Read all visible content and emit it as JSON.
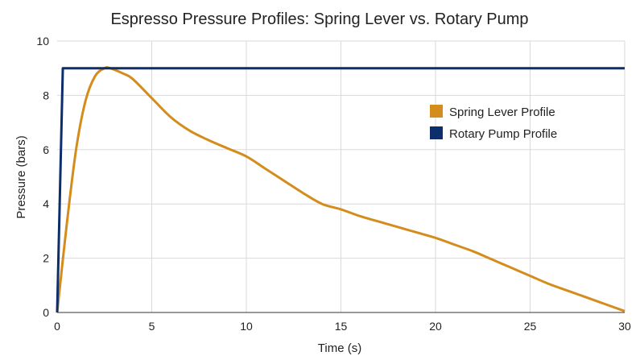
{
  "chart_data": {
    "type": "line",
    "title": "Espresso Pressure Profiles: Spring Lever vs. Rotary Pump",
    "xlabel": "Time (s)",
    "ylabel": "Pressure (bars)",
    "xlim": [
      0,
      30
    ],
    "ylim": [
      0,
      10
    ],
    "xticks": [
      0,
      5,
      10,
      15,
      20,
      25,
      30
    ],
    "yticks": [
      0,
      2,
      4,
      6,
      8,
      10
    ],
    "grid": true,
    "legend_position": "right",
    "series": [
      {
        "name": "Spring Lever Profile",
        "color": "#d48d1c",
        "x": [
          0,
          0.5,
          1,
          1.5,
          2,
          2.5,
          2.8,
          3.5,
          4,
          5,
          6,
          7,
          8,
          9,
          10,
          11,
          12,
          13,
          14,
          15,
          16,
          17,
          18,
          19,
          20,
          21,
          22,
          23,
          24,
          25,
          26,
          27,
          28,
          29,
          30
        ],
        "y": [
          0,
          3.2,
          6.0,
          7.8,
          8.7,
          9.0,
          9.0,
          8.8,
          8.6,
          7.9,
          7.2,
          6.7,
          6.35,
          6.05,
          5.75,
          5.3,
          4.85,
          4.4,
          4.0,
          3.8,
          3.55,
          3.35,
          3.15,
          2.95,
          2.75,
          2.5,
          2.25,
          1.95,
          1.65,
          1.35,
          1.05,
          0.8,
          0.55,
          0.3,
          0.05
        ]
      },
      {
        "name": "Rotary Pump Profile",
        "color": "#0d2d6b",
        "x": [
          0,
          0.3,
          30
        ],
        "y": [
          0,
          9,
          9
        ]
      }
    ]
  }
}
